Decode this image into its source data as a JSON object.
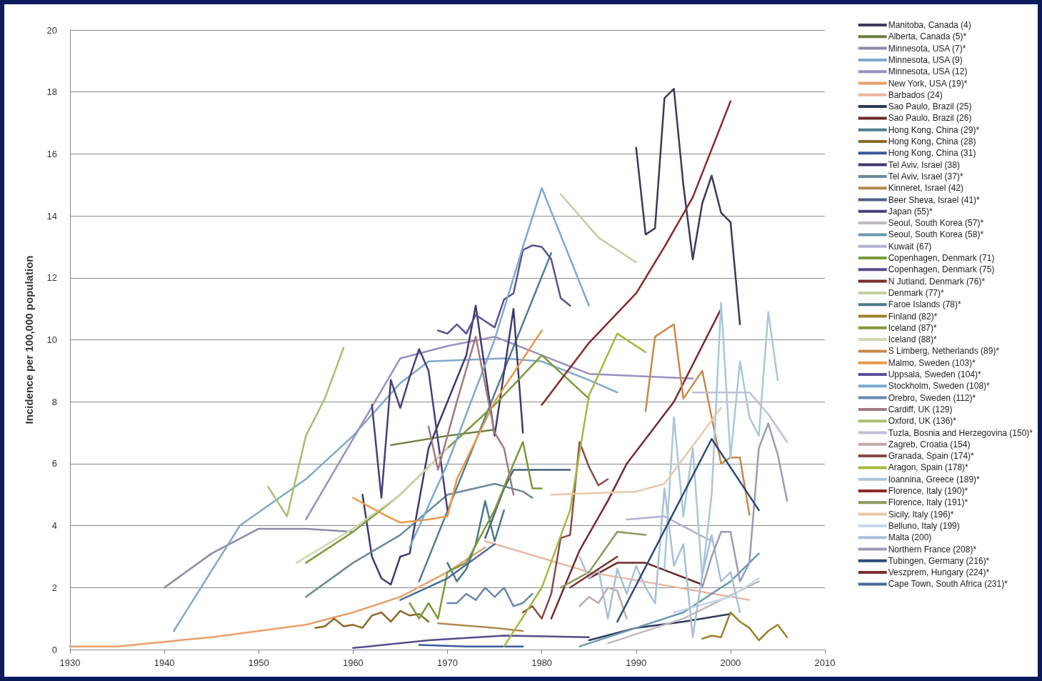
{
  "chart_data": {
    "type": "line",
    "ylabel": "Incidence per 100,000 population",
    "xlim": [
      1930,
      2010
    ],
    "xticks": [
      1930,
      1940,
      1950,
      1960,
      1970,
      1980,
      1990,
      2000,
      2010
    ],
    "ylim": [
      0,
      20
    ],
    "yticks": [
      0,
      2,
      4,
      6,
      8,
      10,
      12,
      14,
      16,
      18,
      20
    ],
    "grid": "y",
    "legend": "right",
    "marker": "none",
    "series": [
      {
        "name": "Manitoba, Canada (4)",
        "color": "#3b3a5c",
        "x": [
          1990,
          1991,
          1992,
          1993,
          1994,
          1995,
          1996,
          1997,
          1998,
          1999,
          2000,
          2001
        ],
        "values": [
          16.2,
          13.4,
          13.6,
          17.8,
          18.1,
          15,
          12.6,
          14.4,
          15.3,
          14.1,
          13.8,
          10.5
        ]
      },
      {
        "name": "Alberta, Canada (5)*",
        "color": "#6b7d3f",
        "x": [
          1964,
          1970,
          1975
        ],
        "values": [
          6.6,
          6.9,
          7.1
        ]
      },
      {
        "name": "Minnesota, USA (7)*",
        "color": "#8e8aa8",
        "x": [
          1940,
          1945,
          1950,
          1955,
          1960
        ],
        "values": [
          2.0,
          3.1,
          3.9,
          3.9,
          3.8
        ]
      },
      {
        "name": "Minnesota, USA (9)",
        "color": "#7fa9c9",
        "x": [
          1941,
          1948,
          1955,
          1960,
          1965,
          1968,
          1976,
          1980,
          1985,
          1988
        ],
        "values": [
          0.6,
          4.0,
          5.5,
          6.9,
          8.6,
          9.3,
          9.4,
          9.3,
          8.7,
          8.3
        ]
      },
      {
        "name": "Minnesota, USA (12)",
        "color": "#9a90c0",
        "x": [
          1955,
          1960,
          1965,
          1970,
          1975,
          1980,
          1985,
          1996
        ],
        "values": [
          4.2,
          6.8,
          9.4,
          9.8,
          10.1,
          9.5,
          8.9,
          8.75
        ]
      },
      {
        "name": "New York, USA (19)*",
        "color": "#e8a06a",
        "x": [
          1930,
          1935,
          1940,
          1945,
          1950,
          1955,
          1960,
          1965,
          1970,
          1974
        ],
        "values": [
          0.1,
          0.1,
          0.25,
          0.4,
          0.6,
          0.8,
          1.2,
          1.7,
          2.5,
          3.3
        ]
      },
      {
        "name": "Barbados (24)",
        "color": "#e8b8a0",
        "x": [
          1974,
          1985,
          2002
        ],
        "values": [
          3.5,
          2.5,
          1.6
        ]
      },
      {
        "name": "Sao Paulo, Brazil (25)",
        "color": "#2e3a5a",
        "x": [
          1985,
          1990,
          1995,
          2000
        ],
        "values": [
          0.3,
          0.7,
          0.9,
          1.15
        ]
      },
      {
        "name": "Sao Paulo, Brazil (26)",
        "color": "#6b2a2a",
        "x": [
          1985,
          1988,
          1991,
          1997
        ],
        "values": [
          2.3,
          2.8,
          2.8,
          2.1
        ]
      },
      {
        "name": "Hong Kong, China (29)*",
        "color": "#4f7f8f",
        "x": [
          1967,
          1981
        ],
        "values": [
          2.2,
          12.8
        ]
      },
      {
        "name": "Hong Kong, China (28)",
        "color": "#8b6a2a",
        "x": [
          1956,
          1957,
          1958,
          1959,
          1960,
          1961,
          1962,
          1963,
          1964,
          1965,
          1966,
          1967,
          1968
        ],
        "values": [
          0.7,
          0.75,
          1.0,
          0.75,
          0.8,
          0.7,
          1.1,
          1.2,
          0.9,
          1.25,
          1.1,
          1.15,
          0.9
        ]
      },
      {
        "name": "Hong Kong, China (31)",
        "color": "#3a5a9a",
        "x": [
          1967,
          1972,
          1978
        ],
        "values": [
          0.15,
          0.1,
          0.1
        ]
      },
      {
        "name": "Tel Aviv, Israel (38)",
        "color": "#3f3a70",
        "x": [
          1961,
          1962,
          1963,
          1964,
          1965,
          1966,
          1968,
          1970,
          1972,
          1973,
          1975,
          1977,
          1978
        ],
        "values": [
          5.0,
          3.0,
          2.3,
          2.1,
          3.0,
          3.1,
          6.5,
          8.0,
          9.5,
          11.1,
          6.9,
          11.0,
          7.0
        ]
      },
      {
        "name": "Tel Aviv, Israel (37)*",
        "color": "#6a8a9a",
        "x": [
          1955,
          1960,
          1965,
          1970,
          1975,
          1978,
          1979
        ],
        "values": [
          1.7,
          2.8,
          3.7,
          5.0,
          5.35,
          5.1,
          4.9
        ]
      },
      {
        "name": "Kinneret, Israel (42)",
        "color": "#b08a50",
        "x": [
          1969,
          1975,
          1978
        ],
        "values": [
          0.85,
          0.7,
          0.6
        ]
      },
      {
        "name": "Beer Sheva, Israel (41)*",
        "color": "#4a6080",
        "x": [
          1974,
          1976,
          1977,
          1983
        ],
        "values": [
          3.6,
          5.2,
          5.8,
          5.8
        ]
      },
      {
        "name": "Japan (55)*",
        "color": "#4a3f7a",
        "x": [
          1962,
          1963,
          1964,
          1965,
          1966,
          1967,
          1968,
          1970
        ],
        "values": [
          7.9,
          4.9,
          8.7,
          7.8,
          8.8,
          9.7,
          9.0,
          4.5
        ]
      },
      {
        "name": "Seoul, South Korea (57)*",
        "color": "#c0b8c0",
        "x": [
          1987,
          1995,
          2003
        ],
        "values": [
          0.2,
          1.0,
          2.2
        ]
      },
      {
        "name": "Seoul, South Korea (58)*",
        "color": "#6a9ab0",
        "x": [
          1984,
          1990,
          1995,
          2000,
          2003
        ],
        "values": [
          0.1,
          0.7,
          1.2,
          2.2,
          3.1
        ]
      },
      {
        "name": "Kuwait (67)",
        "color": "#b0b0d0",
        "x": [
          1989,
          1993,
          1998
        ],
        "values": [
          4.2,
          4.3,
          3.5
        ]
      },
      {
        "name": "Copenhagen, Denmark (71)",
        "color": "#7a9a3a",
        "x": [
          1955,
          1960,
          1965,
          1970,
          1975,
          1980,
          1985
        ],
        "values": [
          2.8,
          3.8,
          5.0,
          6.5,
          7.9,
          9.5,
          8.1
        ]
      },
      {
        "name": "Copenhagen, Denmark (75)",
        "color": "#5a4a8a",
        "x": [
          1960,
          1968,
          1976,
          1985
        ],
        "values": [
          0.05,
          0.3,
          0.45,
          0.4
        ]
      },
      {
        "name": "N Jutland, Denmark (76)*",
        "color": "#7a2a2a",
        "x": [
          1981,
          1984,
          1987,
          1989,
          1994,
          1999
        ],
        "values": [
          1.0,
          3.2,
          4.8,
          6.0,
          8.0,
          11.0
        ]
      },
      {
        "name": "Denmark (77)*",
        "color": "#c0d0a0",
        "x": [
          1982,
          1986,
          1990
        ],
        "values": [
          14.7,
          13.3,
          12.5
        ]
      },
      {
        "name": "Faroe Islands (78)*",
        "color": "#4a7a8a",
        "x": [
          1970,
          1971,
          1972,
          1973,
          1974,
          1975,
          1976
        ],
        "values": [
          2.8,
          2.2,
          2.6,
          3.4,
          4.8,
          3.5,
          4.5
        ]
      },
      {
        "name": "Finland (82)*",
        "color": "#a0802a",
        "x": [
          1997,
          1998,
          1999,
          2000,
          2001,
          2002,
          2003,
          2004,
          2005,
          2006
        ],
        "values": [
          0.35,
          0.45,
          0.4,
          1.2,
          0.9,
          0.7,
          0.3,
          0.6,
          0.8,
          0.4
        ]
      },
      {
        "name": "Iceland (87)*",
        "color": "#7a9a3a",
        "x": [
          1966,
          1967,
          1968,
          1969,
          1970,
          1972,
          1975,
          1977,
          1978,
          1979,
          1980
        ],
        "values": [
          1.5,
          1.0,
          1.5,
          1.0,
          2.5,
          2.8,
          4.5,
          6.0,
          6.7,
          5.2,
          5.2
        ]
      },
      {
        "name": "Iceland (88)*",
        "color": "#d0d8b0",
        "x": [
          1954,
          1960,
          1965,
          1970
        ],
        "values": [
          2.8,
          3.9,
          5.0,
          6.5
        ]
      },
      {
        "name": "S Limberg, Netherlands (89)*",
        "color": "#c8884a",
        "x": [
          1991,
          1992,
          1994,
          1995,
          1997,
          1999,
          2000,
          2001,
          2002
        ],
        "values": [
          7.7,
          10.1,
          10.5,
          8.1,
          9.0,
          6.0,
          6.2,
          6.2,
          4.35
        ]
      },
      {
        "name": "Malmo, Sweden (103)*",
        "color": "#e89a4a",
        "x": [
          1960,
          1963,
          1965,
          1968,
          1970,
          1971,
          1975,
          1980
        ],
        "values": [
          4.9,
          4.4,
          4.1,
          4.2,
          4.3,
          5.5,
          8.0,
          10.3
        ]
      },
      {
        "name": "Uppsala, Sweden (104)*",
        "color": "#5e4f96",
        "x": [
          1969,
          1970,
          1971,
          1972,
          1973,
          1974,
          1975,
          1976,
          1977,
          1978,
          1979,
          1980,
          1981,
          1982,
          1983
        ],
        "values": [
          10.3,
          10.2,
          10.5,
          10.2,
          10.8,
          10.6,
          10.4,
          11.3,
          11.5,
          12.9,
          13.05,
          13.0,
          12.6,
          11.35,
          11.1
        ]
      },
      {
        "name": "Stockholm, Sweden (108)*",
        "color": "#7aaad0",
        "x": [
          1966,
          1970,
          1975,
          1978,
          1980,
          1985
        ],
        "values": [
          3.3,
          6.0,
          10.0,
          13.0,
          14.9,
          11.1
        ]
      },
      {
        "name": "Orebro, Sweden (112)*",
        "color": "#6a88b0",
        "x": [
          1970,
          1971,
          1972,
          1973,
          1974,
          1975,
          1976,
          1977,
          1978,
          1979
        ],
        "values": [
          1.5,
          1.5,
          1.8,
          1.6,
          2.0,
          1.7,
          2.0,
          1.4,
          1.5,
          1.8
        ]
      },
      {
        "name": "Cardiff, UK (129)",
        "color": "#a07a80",
        "x": [
          1968,
          1969,
          1971,
          1973,
          1975,
          1976,
          1977
        ],
        "values": [
          7.2,
          5.8,
          8.0,
          10.1,
          7.0,
          6.5,
          5.0
        ]
      },
      {
        "name": "Oxford, UK (136)*",
        "color": "#a8c070",
        "x": [
          1951,
          1953,
          1955,
          1957,
          1959
        ],
        "values": [
          5.25,
          4.3,
          6.9,
          8.1,
          9.75
        ]
      },
      {
        "name": "Tuzla, Bosnia and Herzegovina (150)*",
        "color": "#c0c0d8",
        "x": [
          1996,
          2002,
          2004,
          2006
        ],
        "values": [
          8.3,
          8.3,
          7.6,
          6.7
        ]
      },
      {
        "name": "Zagreb, Croatia (154)",
        "color": "#c0a8a8",
        "x": [
          1984,
          1985,
          1986,
          1987,
          1988,
          1989
        ],
        "values": [
          1.4,
          1.7,
          1.5,
          2.0,
          1.9,
          1.0
        ]
      },
      {
        "name": "Granada, Spain (174)*",
        "color": "#8a4a4a",
        "x": [
          1978,
          1979,
          1980,
          1981,
          1982,
          1983,
          1984,
          1985,
          1986,
          1987
        ],
        "values": [
          1.2,
          1.4,
          1.0,
          1.8,
          3.6,
          3.7,
          6.7,
          5.9,
          5.3,
          5.5
        ]
      },
      {
        "name": "Aragon, Spain (178)*",
        "color": "#a8b840",
        "x": [
          1976,
          1980,
          1983,
          1985,
          1988,
          1991
        ],
        "values": [
          0.1,
          2.0,
          4.5,
          8.2,
          10.2,
          9.6
        ]
      },
      {
        "name": "Ioannina, Greece (189)*",
        "color": "#a8c8d8",
        "x": [
          1993,
          1994,
          1995,
          1996,
          1997,
          1998,
          1999,
          2000,
          2001,
          2002,
          2003,
          2004,
          2005
        ],
        "values": [
          2.6,
          7.5,
          4.3,
          6.5,
          2.3,
          5.0,
          11.2,
          6.2,
          9.3,
          7.5,
          6.9,
          10.9,
          8.7
        ]
      },
      {
        "name": "Florence, Italy (190)*",
        "color": "#8a2a2a",
        "x": [
          1980,
          1985,
          1990,
          1993,
          1996,
          2000
        ],
        "values": [
          7.9,
          9.9,
          11.5,
          13.0,
          14.6,
          17.7
        ]
      },
      {
        "name": "Florence, Italy (191)*",
        "color": "#8a9a5a",
        "x": [
          1982,
          1985,
          1988,
          1991
        ],
        "values": [
          2.0,
          2.5,
          3.8,
          3.7
        ]
      },
      {
        "name": "Sicily, Italy (196)*",
        "color": "#e8c8a8",
        "x": [
          1981,
          1990,
          1993,
          1999
        ],
        "values": [
          5.0,
          5.1,
          5.35,
          7.8
        ]
      },
      {
        "name": "Belluno, Italy (199)",
        "color": "#c8d8e8",
        "x": [
          1994,
          2000,
          2003
        ],
        "values": [
          1.2,
          1.7,
          2.3
        ]
      },
      {
        "name": "Malta (200)",
        "color": "#a8c0d8",
        "x": [
          1984,
          1985,
          1986,
          1987,
          1988,
          1989,
          1990,
          1991,
          1992,
          1993,
          1994,
          1995,
          1996,
          1997,
          1998,
          1999,
          2000,
          2001
        ],
        "values": [
          3.0,
          2.3,
          2.6,
          1.0,
          2.6,
          1.8,
          2.7,
          2.0,
          1.5,
          5.2,
          2.7,
          3.4,
          0.4,
          2.4,
          3.7,
          2.2,
          2.5,
          1.2
        ]
      },
      {
        "name": "Northern France (208)*",
        "color": "#9a9ab8",
        "x": [
          1997,
          1998,
          1999,
          2000,
          2001,
          2002,
          2003,
          2004,
          2005,
          2006
        ],
        "values": [
          2.0,
          3.0,
          3.8,
          3.8,
          2.2,
          2.8,
          6.5,
          7.3,
          6.3,
          4.8
        ]
      },
      {
        "name": "Tubingen, Germany (216)*",
        "color": "#2a4a7a",
        "x": [
          1988,
          1998,
          2003
        ],
        "values": [
          0.9,
          6.8,
          4.5
        ]
      },
      {
        "name": "Veszprem, Hungary (224)*",
        "color": "#7a3030",
        "x": [
          1983,
          1986,
          1988
        ],
        "values": [
          2.0,
          2.6,
          3.0
        ]
      },
      {
        "name": "Cape Town, South Africa (231)*",
        "color": "#4a6a9a",
        "x": [
          1965,
          1970,
          1975
        ],
        "values": [
          1.6,
          2.3,
          3.4
        ]
      }
    ]
  }
}
